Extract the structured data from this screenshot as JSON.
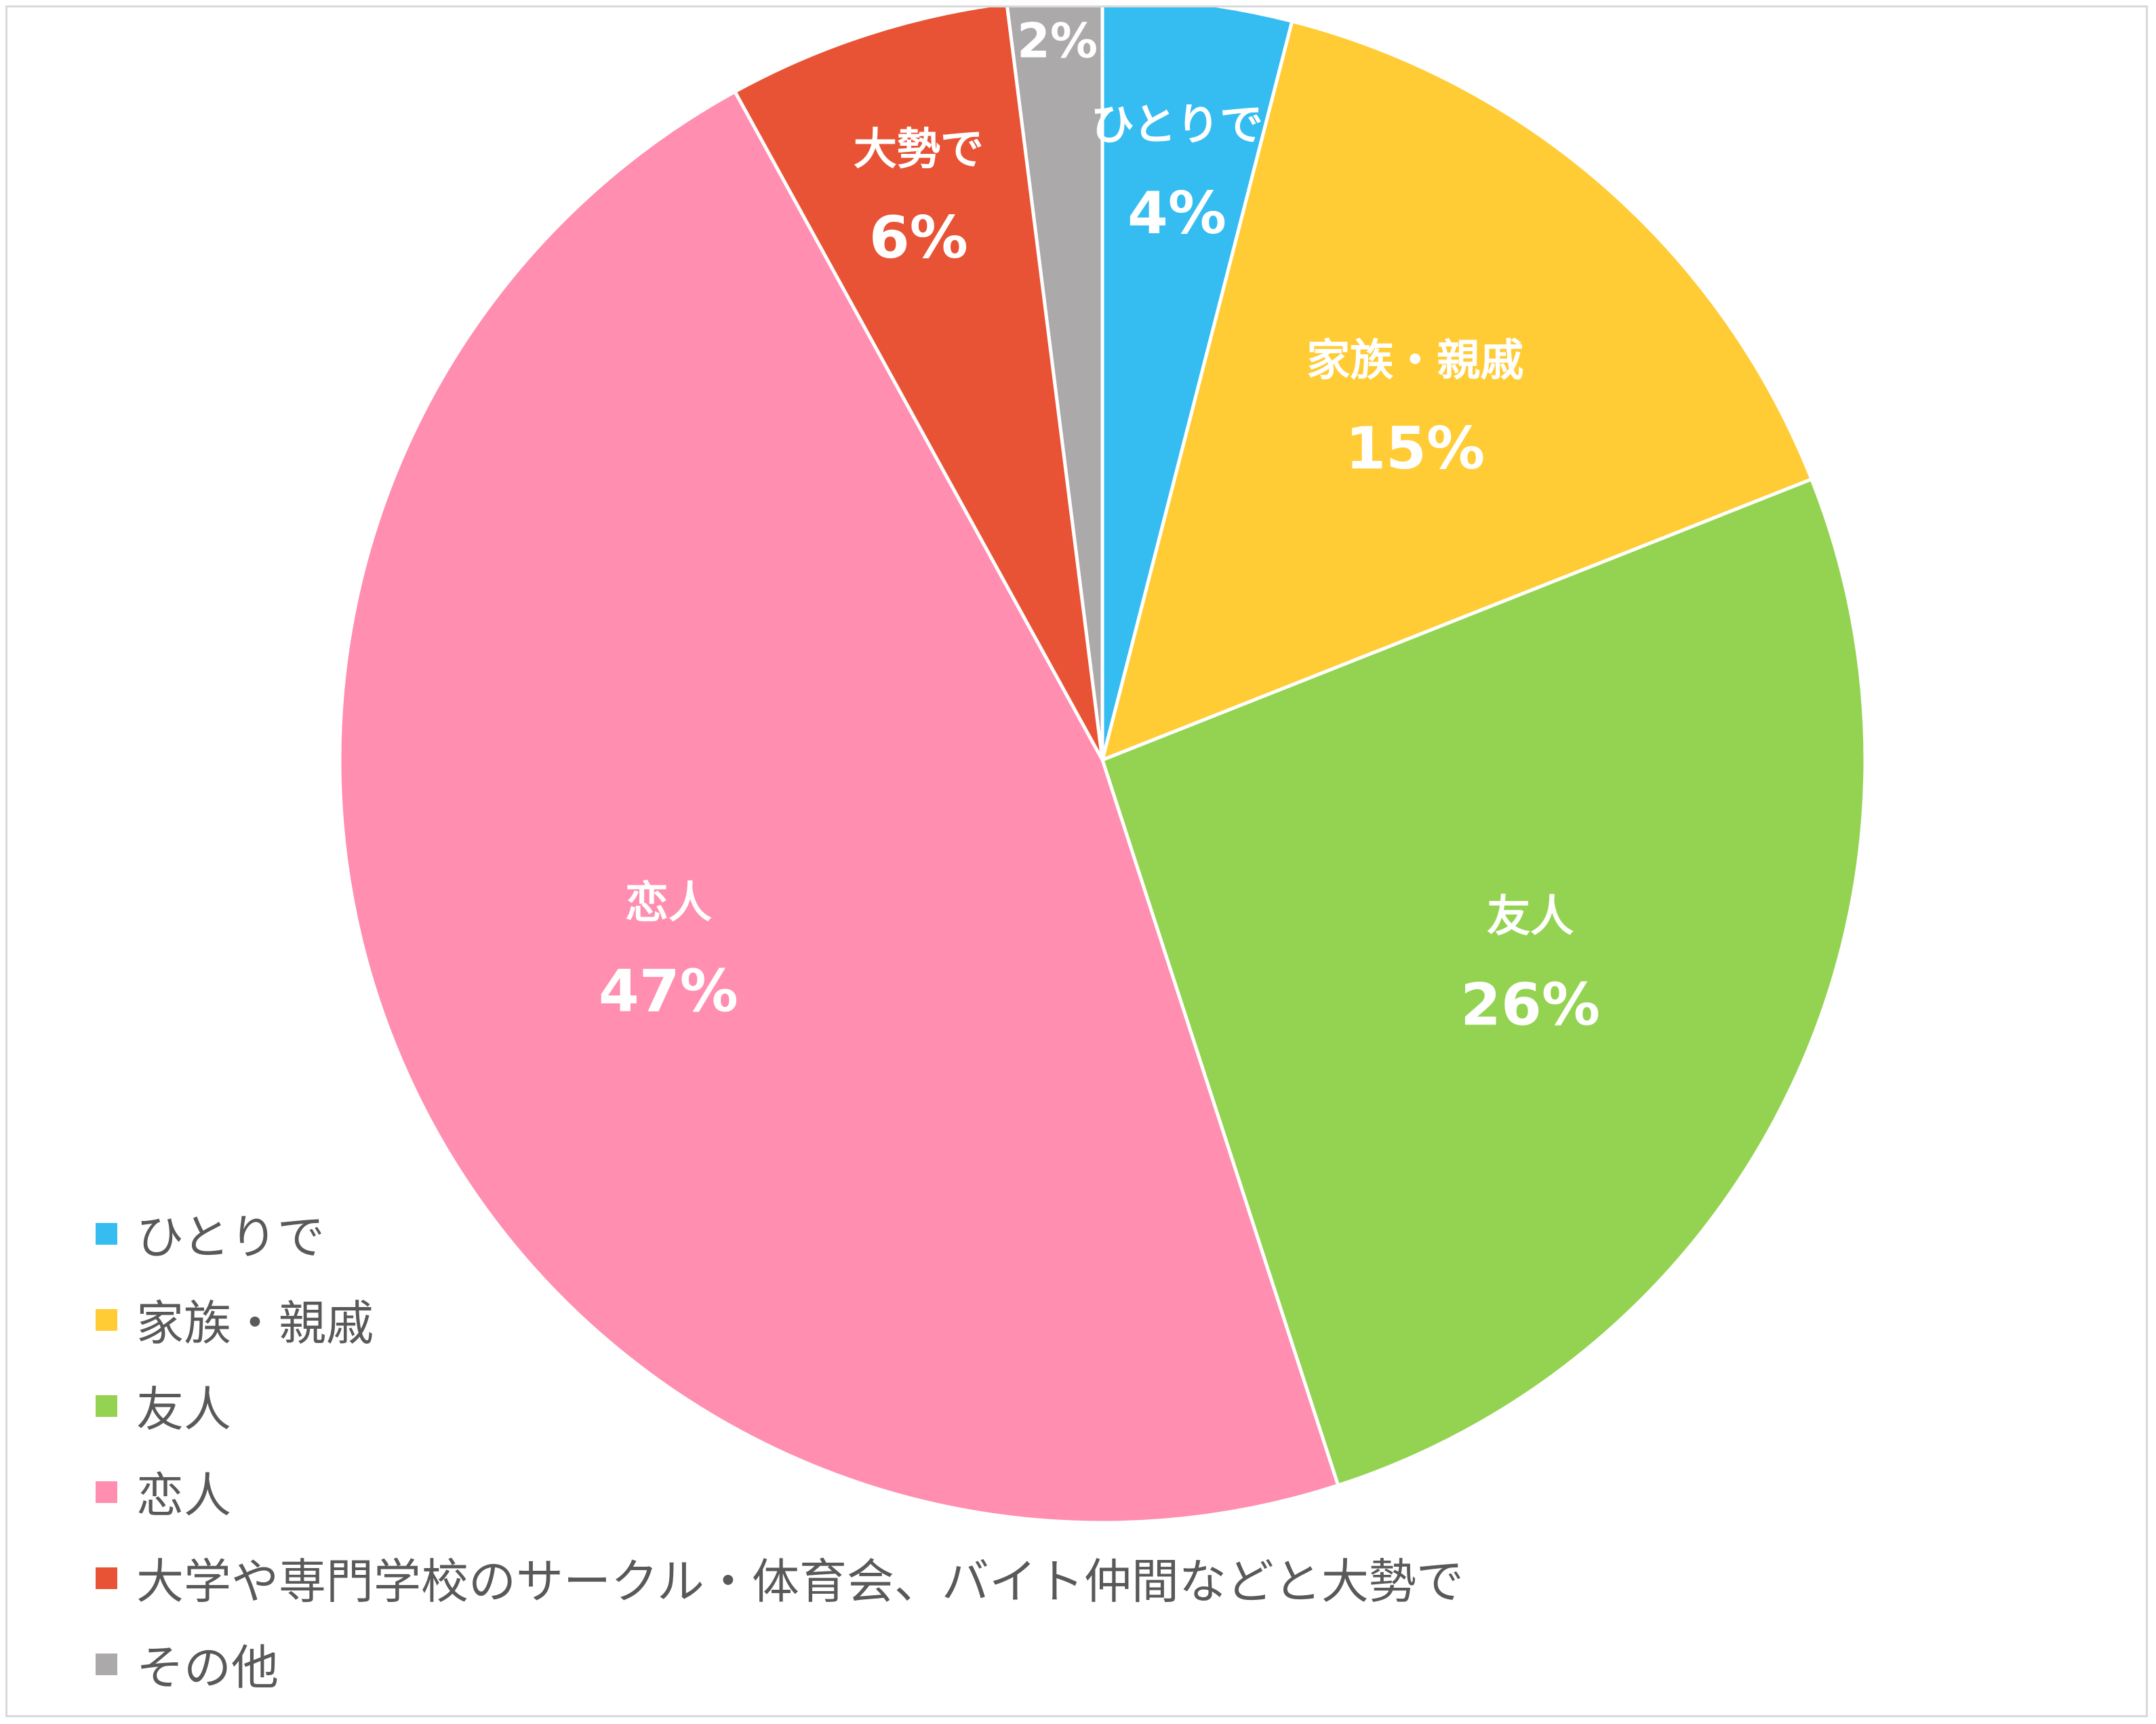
{
  "chart_data": {
    "type": "pie",
    "title": "",
    "start_angle": "top, clockwise",
    "legend_position": "bottom-left",
    "slices": [
      {
        "name": "ひとりで",
        "short_label": "ひとりで",
        "value": 4,
        "value_label": "4%",
        "color": "#35BDF1"
      },
      {
        "name": "家族・親戚",
        "short_label": "家族・親戚",
        "value": 15,
        "value_label": "15%",
        "color": "#FFCC35"
      },
      {
        "name": "友人",
        "short_label": "友人",
        "value": 26,
        "value_label": "26%",
        "color": "#94D351"
      },
      {
        "name": "恋人",
        "short_label": "恋人",
        "value": 47,
        "value_label": "47%",
        "color": "#FF8EB1"
      },
      {
        "name": "大学や専門学校のサークル・体育会、バイト仲間などと大勢で",
        "short_label": "大勢で",
        "value": 6,
        "value_label": "6%",
        "color": "#E85335"
      },
      {
        "name": "その他",
        "short_label": "",
        "value": 2,
        "value_label": "2%",
        "color": "#ABA9A9"
      }
    ]
  }
}
